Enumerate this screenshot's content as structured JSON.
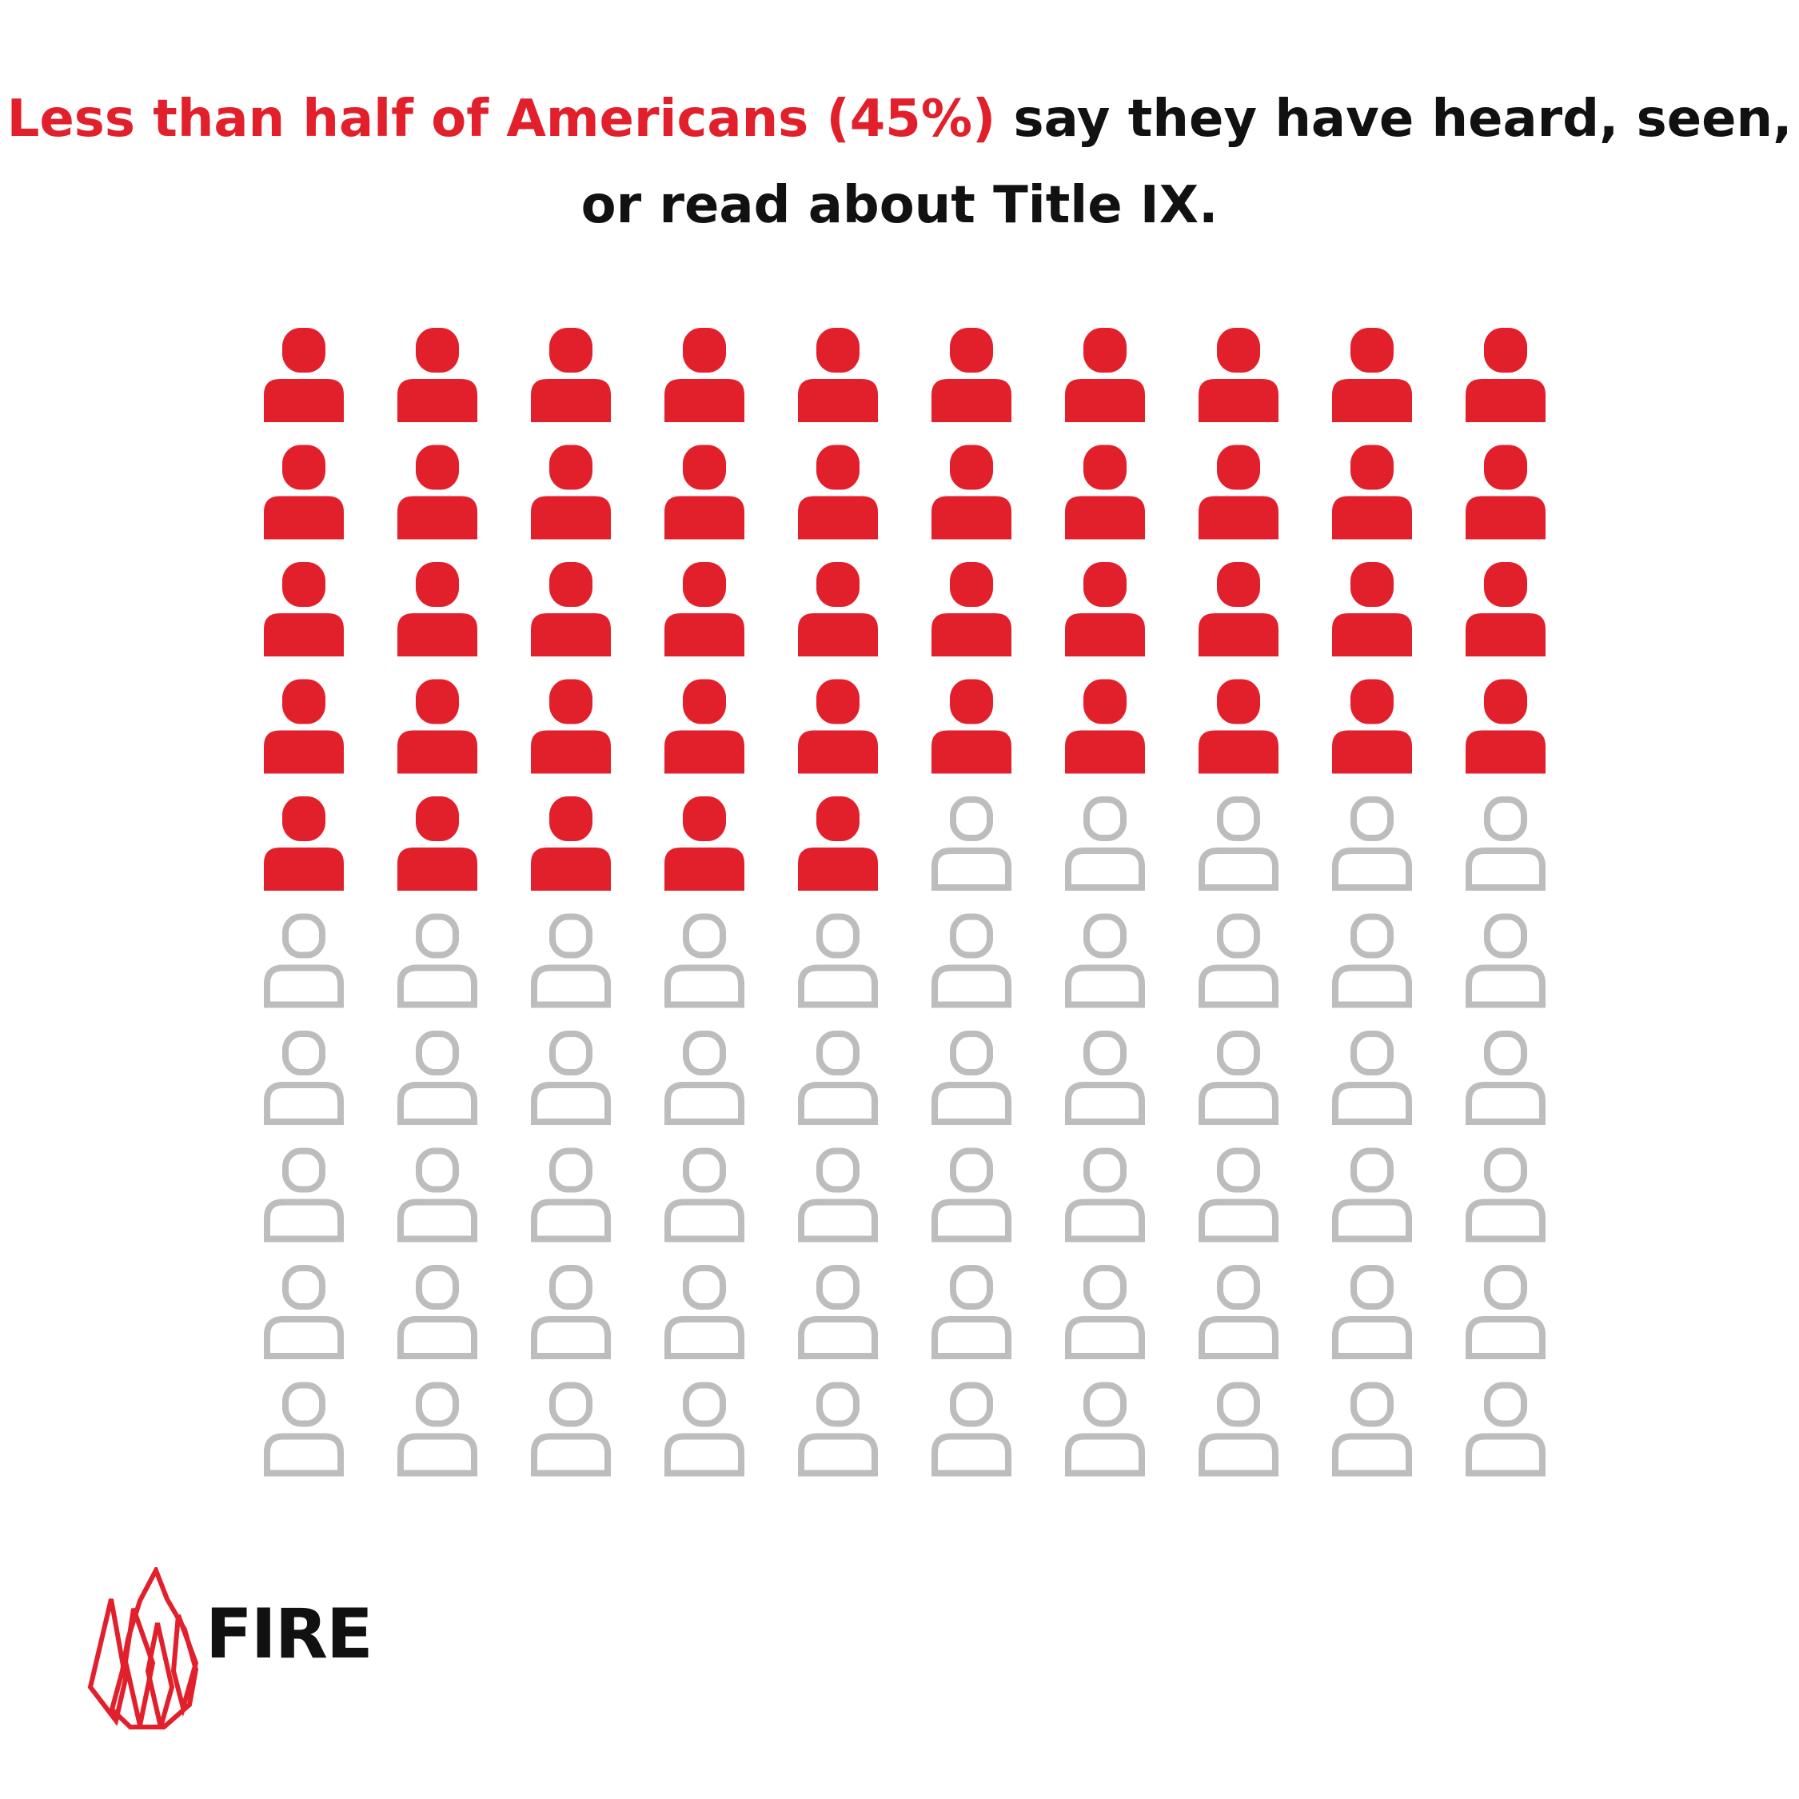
{
  "headline": {
    "highlight": "Less than half of Americans (45%)",
    "rest": " say they have heard, seen, or read about Title IX."
  },
  "colors": {
    "highlight": "#e2202c",
    "text": "#111111",
    "inactive": "#bdbdbd"
  },
  "chart_data": {
    "type": "pictogram",
    "grid": {
      "rows": 10,
      "cols": 10
    },
    "total": 100,
    "series": [
      {
        "name": "heard, seen, or read about Title IX",
        "value": 45,
        "color": "#e2202c",
        "style": "filled"
      },
      {
        "name": "",
        "value": 55,
        "color": "#bdbdbd",
        "style": "outline"
      }
    ],
    "icon": "person-icon"
  },
  "logo": {
    "word": "FIRE",
    "icon": "flame-icon"
  }
}
